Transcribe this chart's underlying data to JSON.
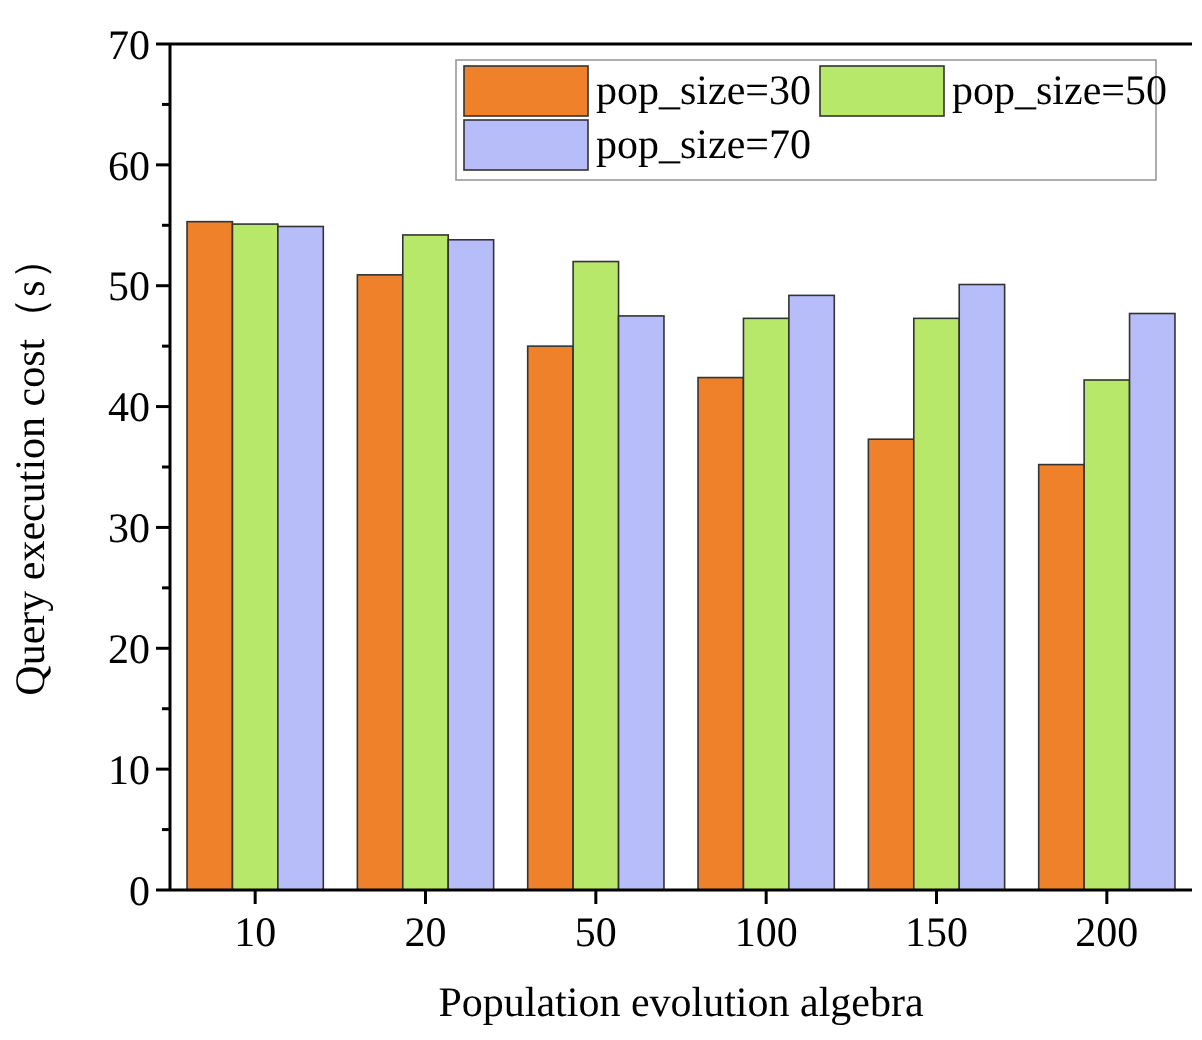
{
  "chart_data": {
    "type": "bar",
    "xlabel": "Population evolution algebra",
    "ylabel": "Query execution cost（s）",
    "categories": [
      "10",
      "20",
      "50",
      "100",
      "150",
      "200"
    ],
    "series": [
      {
        "name": "pop_size=30",
        "color": "#ee8129",
        "values": [
          55.3,
          50.9,
          45.0,
          42.4,
          37.3,
          35.2
        ]
      },
      {
        "name": "pop_size=50",
        "color": "#b8e86a",
        "values": [
          55.1,
          54.2,
          52.0,
          47.3,
          47.3,
          42.2
        ]
      },
      {
        "name": "pop_size=70",
        "color": "#b6bdf8",
        "values": [
          54.9,
          53.8,
          47.5,
          49.2,
          50.1,
          47.7
        ]
      }
    ],
    "ylim": [
      0,
      70
    ],
    "yticks": [
      0,
      {
        "value": 5,
        "label": null
      },
      10,
      {
        "value": 15,
        "label": null
      },
      20,
      {
        "value": 25,
        "label": null
      },
      30,
      {
        "value": 35,
        "label": null
      },
      40,
      {
        "value": 45,
        "label": null
      },
      50,
      {
        "value": 55,
        "label": null
      },
      60,
      {
        "value": 65,
        "label": null
      },
      70
    ],
    "grid": false,
    "legend": "top right"
  }
}
